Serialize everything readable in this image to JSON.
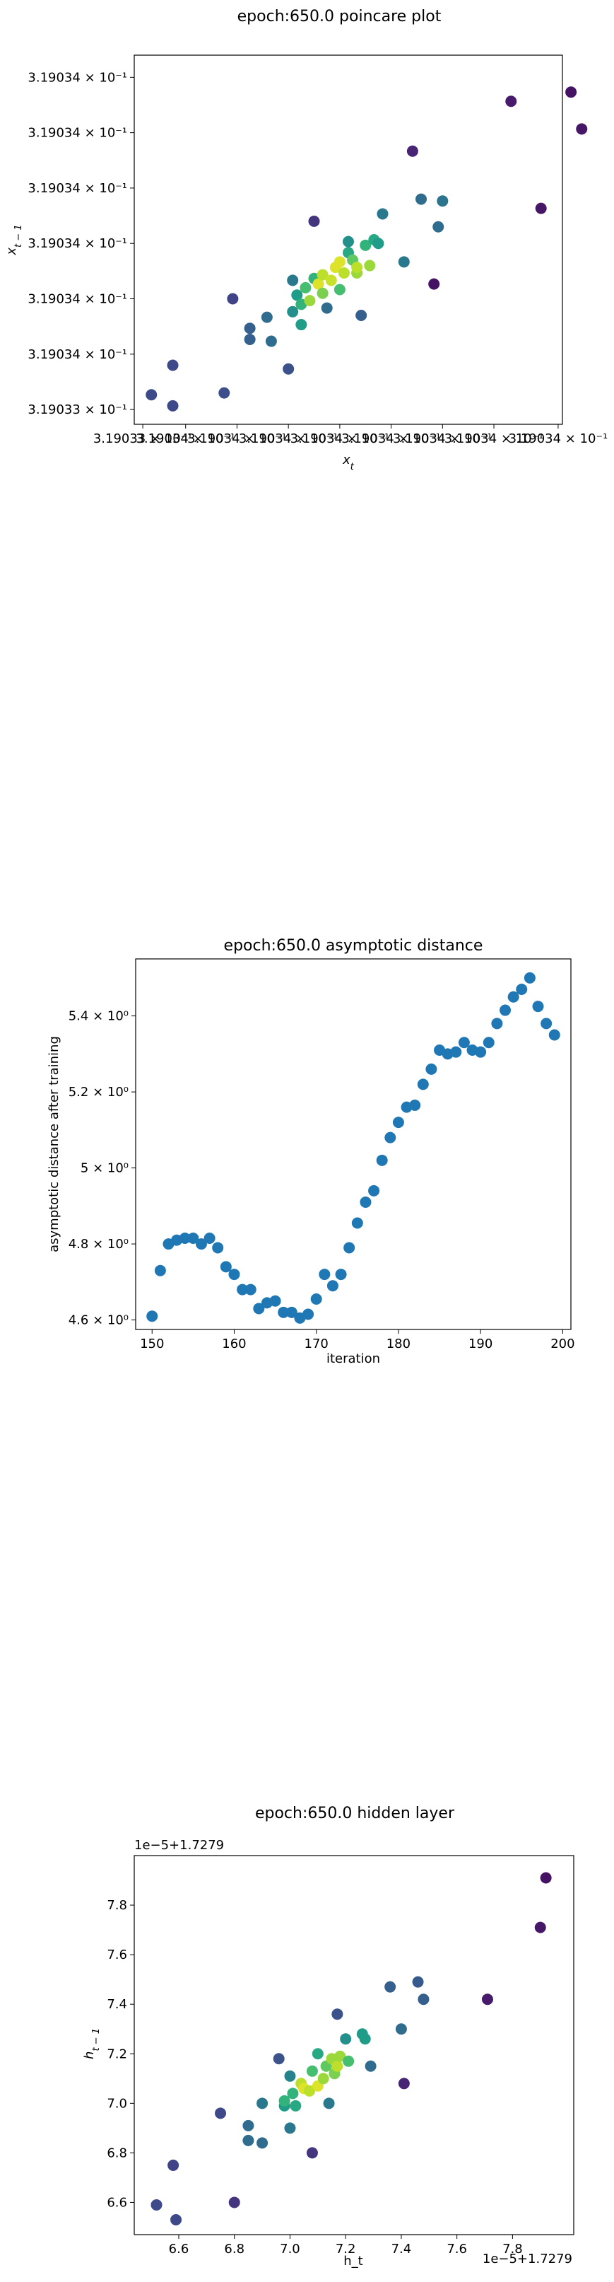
{
  "chart_data": [
    {
      "type": "scatter",
      "title": "epoch:650.0 poincare plot",
      "xlabel": "x_t",
      "ylabel": "x_{t-1}",
      "xlim": [
        0,
        100
      ],
      "ylim": [
        0,
        100
      ],
      "x_ticks": [
        {
          "v": 2,
          "label": "3.19033 × 10⁻¹"
        },
        {
          "v": 12,
          "label": "3.19034 × 10⁻¹"
        },
        {
          "v": 24,
          "label": "3.19034 × 10⁻¹"
        },
        {
          "v": 36,
          "label": "3.19034 × 10⁻¹"
        },
        {
          "v": 48,
          "label": "3.19034 × 10⁻¹"
        },
        {
          "v": 60,
          "label": "3.19034 × 10⁻¹"
        },
        {
          "v": 72,
          "label": "3.19034 × 10⁻¹"
        },
        {
          "v": 84,
          "label": "3.19034 × 10⁻¹"
        },
        {
          "v": 99,
          "label": "3.19034 × 10⁻¹"
        }
      ],
      "y_ticks": [
        {
          "v": 4,
          "label": "3.19033 × 10⁻¹"
        },
        {
          "v": 19,
          "label": "3.19034 × 10⁻¹"
        },
        {
          "v": 34,
          "label": "3.19034 × 10⁻¹"
        },
        {
          "v": 49,
          "label": "3.19034 × 10⁻¹"
        },
        {
          "v": 64,
          "label": "3.19034 × 10⁻¹"
        },
        {
          "v": 79,
          "label": "3.19034 × 10⁻¹"
        },
        {
          "v": 94,
          "label": "3.19034 × 10⁻¹"
        }
      ],
      "points": [
        {
          "x": 4,
          "y": 8,
          "c": 0.22
        },
        {
          "x": 9,
          "y": 5,
          "c": 0.22
        },
        {
          "x": 9,
          "y": 16,
          "c": 0.22
        },
        {
          "x": 21,
          "y": 8.5,
          "c": 0.24
        },
        {
          "x": 23,
          "y": 34,
          "c": 0.2
        },
        {
          "x": 27,
          "y": 23,
          "c": 0.3
        },
        {
          "x": 27,
          "y": 26,
          "c": 0.3
        },
        {
          "x": 31,
          "y": 29,
          "c": 0.35
        },
        {
          "x": 32,
          "y": 22.5,
          "c": 0.35
        },
        {
          "x": 36,
          "y": 15,
          "c": 0.25
        },
        {
          "x": 37,
          "y": 30.5,
          "c": 0.5
        },
        {
          "x": 37,
          "y": 39,
          "c": 0.4
        },
        {
          "x": 38,
          "y": 35,
          "c": 0.55
        },
        {
          "x": 39,
          "y": 27,
          "c": 0.55
        },
        {
          "x": 39,
          "y": 32.5,
          "c": 0.65
        },
        {
          "x": 40,
          "y": 37,
          "c": 0.7
        },
        {
          "x": 41,
          "y": 33.5,
          "c": 0.85
        },
        {
          "x": 42,
          "y": 55,
          "c": 0.15
        },
        {
          "x": 42,
          "y": 39.5,
          "c": 0.65
        },
        {
          "x": 43,
          "y": 38,
          "c": 0.95
        },
        {
          "x": 44,
          "y": 35.5,
          "c": 0.8
        },
        {
          "x": 44,
          "y": 40.5,
          "c": 0.9
        },
        {
          "x": 45,
          "y": 31.5,
          "c": 0.35
        },
        {
          "x": 46,
          "y": 39,
          "c": 0.92
        },
        {
          "x": 47,
          "y": 42.5,
          "c": 0.95
        },
        {
          "x": 48,
          "y": 44,
          "c": 0.95
        },
        {
          "x": 48,
          "y": 36.5,
          "c": 0.7
        },
        {
          "x": 49,
          "y": 41,
          "c": 0.9
        },
        {
          "x": 50,
          "y": 46.5,
          "c": 0.6
        },
        {
          "x": 50,
          "y": 49.5,
          "c": 0.5
        },
        {
          "x": 51,
          "y": 44.5,
          "c": 0.75
        },
        {
          "x": 52,
          "y": 41,
          "c": 0.85
        },
        {
          "x": 52,
          "y": 42.5,
          "c": 0.9
        },
        {
          "x": 53,
          "y": 29.5,
          "c": 0.3
        },
        {
          "x": 54,
          "y": 48.5,
          "c": 0.65
        },
        {
          "x": 55,
          "y": 43,
          "c": 0.85
        },
        {
          "x": 56,
          "y": 50,
          "c": 0.6
        },
        {
          "x": 57,
          "y": 49,
          "c": 0.55
        },
        {
          "x": 58,
          "y": 57,
          "c": 0.4
        },
        {
          "x": 63,
          "y": 44,
          "c": 0.4
        },
        {
          "x": 65,
          "y": 74,
          "c": 0.1
        },
        {
          "x": 67,
          "y": 61,
          "c": 0.35
        },
        {
          "x": 70,
          "y": 38,
          "c": 0.05
        },
        {
          "x": 71,
          "y": 53.5,
          "c": 0.35
        },
        {
          "x": 72,
          "y": 60.5,
          "c": 0.38
        },
        {
          "x": 88,
          "y": 87.5,
          "c": 0.07
        },
        {
          "x": 95,
          "y": 58.5,
          "c": 0.06
        },
        {
          "x": 102,
          "y": 90,
          "c": 0.05
        },
        {
          "x": 104.5,
          "y": 80,
          "c": 0.06
        }
      ]
    },
    {
      "type": "scatter",
      "title": "epoch:650.0 asymptotic distance",
      "xlabel": "iteration",
      "ylabel": "asymptotic distance after training",
      "xlim": [
        148,
        201
      ],
      "ylim": [
        4.575,
        5.55
      ],
      "x_ticks": [
        {
          "v": 150,
          "label": "150"
        },
        {
          "v": 160,
          "label": "160"
        },
        {
          "v": 170,
          "label": "170"
        },
        {
          "v": 180,
          "label": "180"
        },
        {
          "v": 190,
          "label": "190"
        },
        {
          "v": 200,
          "label": "200"
        }
      ],
      "y_ticks": [
        {
          "v": 4.6,
          "label": "4.6 × 10⁰"
        },
        {
          "v": 4.8,
          "label": "4.8 × 10⁰"
        },
        {
          "v": 5.0,
          "label": "5 × 10⁰"
        },
        {
          "v": 5.2,
          "label": "5.2 × 10⁰"
        },
        {
          "v": 5.4,
          "label": "5.4 × 10⁰"
        }
      ],
      "x": [
        150,
        151,
        152,
        153,
        154,
        155,
        156,
        157,
        158,
        159,
        160,
        161,
        162,
        163,
        164,
        165,
        166,
        167,
        168,
        169,
        170,
        171,
        172,
        173,
        174,
        175,
        176,
        177,
        178,
        179,
        180,
        181,
        182,
        183,
        184,
        185,
        186,
        187,
        188,
        189,
        190,
        191,
        192,
        193,
        194,
        195,
        196,
        197,
        198,
        199
      ],
      "y": [
        4.61,
        4.73,
        4.8,
        4.81,
        4.815,
        4.815,
        4.8,
        4.815,
        4.79,
        4.74,
        4.72,
        4.68,
        4.68,
        4.63,
        4.645,
        4.65,
        4.62,
        4.62,
        4.605,
        4.615,
        4.655,
        4.72,
        4.69,
        4.72,
        4.79,
        4.855,
        4.91,
        4.94,
        5.02,
        5.08,
        5.12,
        5.16,
        5.165,
        5.22,
        5.26,
        5.31,
        5.3,
        5.305,
        5.33,
        5.31,
        5.305,
        5.33,
        5.38,
        5.415,
        5.45,
        5.47,
        5.5,
        5.425,
        5.38,
        5.35
      ]
    },
    {
      "type": "scatter",
      "title": "epoch:650.0 hidden layer",
      "xlabel": "h_t",
      "ylabel": "h_{t-1}",
      "x_offset_label": "1e−5+1.7279",
      "y_offset_label": "1e−5+1.7279",
      "xlim": [
        6.44,
        8.02
      ],
      "ylim": [
        6.47,
        8.0
      ],
      "x_ticks": [
        {
          "v": 6.6,
          "label": "6.6"
        },
        {
          "v": 6.8,
          "label": "6.8"
        },
        {
          "v": 7.0,
          "label": "7.0"
        },
        {
          "v": 7.2,
          "label": "7.2"
        },
        {
          "v": 7.4,
          "label": "7.4"
        },
        {
          "v": 7.6,
          "label": "7.6"
        },
        {
          "v": 7.8,
          "label": "7.8"
        }
      ],
      "y_ticks": [
        {
          "v": 6.6,
          "label": "6.6"
        },
        {
          "v": 6.8,
          "label": "6.8"
        },
        {
          "v": 7.0,
          "label": "7.0"
        },
        {
          "v": 7.2,
          "label": "7.2"
        },
        {
          "v": 7.4,
          "label": "7.4"
        },
        {
          "v": 7.6,
          "label": "7.6"
        },
        {
          "v": 7.8,
          "label": "7.8"
        }
      ],
      "points": [
        {
          "x": 6.52,
          "y": 6.59,
          "c": 0.22
        },
        {
          "x": 6.58,
          "y": 6.75,
          "c": 0.2
        },
        {
          "x": 6.59,
          "y": 6.53,
          "c": 0.22
        },
        {
          "x": 6.75,
          "y": 6.96,
          "c": 0.22
        },
        {
          "x": 6.8,
          "y": 6.6,
          "c": 0.15
        },
        {
          "x": 6.85,
          "y": 6.85,
          "c": 0.35
        },
        {
          "x": 6.85,
          "y": 6.91,
          "c": 0.35
        },
        {
          "x": 6.9,
          "y": 7.0,
          "c": 0.4
        },
        {
          "x": 6.9,
          "y": 6.84,
          "c": 0.35
        },
        {
          "x": 6.96,
          "y": 7.18,
          "c": 0.25
        },
        {
          "x": 6.98,
          "y": 6.99,
          "c": 0.55
        },
        {
          "x": 6.98,
          "y": 7.01,
          "c": 0.65
        },
        {
          "x": 7.0,
          "y": 7.11,
          "c": 0.45
        },
        {
          "x": 7.0,
          "y": 6.9,
          "c": 0.4
        },
        {
          "x": 7.01,
          "y": 7.04,
          "c": 0.65
        },
        {
          "x": 7.02,
          "y": 6.99,
          "c": 0.6
        },
        {
          "x": 7.04,
          "y": 7.08,
          "c": 0.9
        },
        {
          "x": 7.05,
          "y": 7.06,
          "c": 0.95
        },
        {
          "x": 7.07,
          "y": 7.05,
          "c": 0.9
        },
        {
          "x": 7.08,
          "y": 7.13,
          "c": 0.7
        },
        {
          "x": 7.08,
          "y": 6.8,
          "c": 0.15
        },
        {
          "x": 7.1,
          "y": 7.2,
          "c": 0.6
        },
        {
          "x": 7.1,
          "y": 7.07,
          "c": 0.95
        },
        {
          "x": 7.12,
          "y": 7.1,
          "c": 0.85
        },
        {
          "x": 7.13,
          "y": 7.15,
          "c": 0.75
        },
        {
          "x": 7.14,
          "y": 7.0,
          "c": 0.4
        },
        {
          "x": 7.15,
          "y": 7.18,
          "c": 0.85
        },
        {
          "x": 7.16,
          "y": 7.12,
          "c": 0.8
        },
        {
          "x": 7.17,
          "y": 7.15,
          "c": 0.9
        },
        {
          "x": 7.17,
          "y": 7.36,
          "c": 0.25
        },
        {
          "x": 7.18,
          "y": 7.19,
          "c": 0.85
        },
        {
          "x": 7.2,
          "y": 7.26,
          "c": 0.5
        },
        {
          "x": 7.21,
          "y": 7.17,
          "c": 0.7
        },
        {
          "x": 7.26,
          "y": 7.28,
          "c": 0.55
        },
        {
          "x": 7.27,
          "y": 7.26,
          "c": 0.55
        },
        {
          "x": 7.29,
          "y": 7.15,
          "c": 0.35
        },
        {
          "x": 7.36,
          "y": 7.47,
          "c": 0.3
        },
        {
          "x": 7.4,
          "y": 7.3,
          "c": 0.35
        },
        {
          "x": 7.41,
          "y": 7.08,
          "c": 0.1
        },
        {
          "x": 7.46,
          "y": 7.49,
          "c": 0.28
        },
        {
          "x": 7.48,
          "y": 7.42,
          "c": 0.3
        },
        {
          "x": 7.71,
          "y": 7.42,
          "c": 0.07
        },
        {
          "x": 7.9,
          "y": 7.71,
          "c": 0.06
        },
        {
          "x": 7.92,
          "y": 7.91,
          "c": 0.05
        }
      ]
    }
  ]
}
